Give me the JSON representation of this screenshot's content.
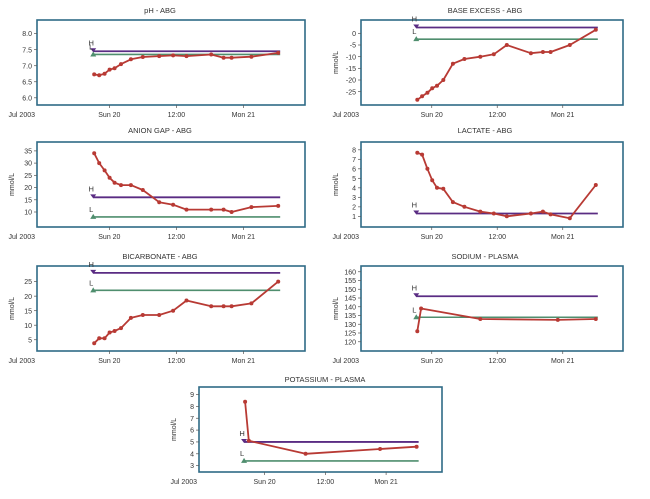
{
  "colors": {
    "frame": "#2f6a86",
    "series": "#b83a34",
    "high": "#5a2c83",
    "low": "#4f8e6e",
    "text": "#333333"
  },
  "x_ticks": [
    "Jul 2003",
    "Sun 20",
    "12:00",
    "Mon 21"
  ],
  "x_range": [
    0,
    48
  ],
  "chart_data": [
    {
      "id": "ph",
      "type": "line",
      "title": "pH - ABG",
      "ylabel": "",
      "ylim": [
        5.9,
        8.3
      ],
      "yticks": [
        6.0,
        6.5,
        7.0,
        7.5,
        8.0
      ],
      "decimals": 1,
      "high": 7.45,
      "low": 7.35,
      "high_label": "H",
      "low_label": "L",
      "x": [
        6.5,
        7.5,
        8.6,
        9.6,
        10.6,
        11.9,
        13.9,
        16.3,
        19.6,
        22.4,
        25.1,
        30.1,
        32.6,
        34.2,
        38.2,
        43.6
      ],
      "y": [
        6.73,
        6.7,
        6.75,
        6.88,
        6.92,
        7.05,
        7.2,
        7.27,
        7.3,
        7.32,
        7.3,
        7.35,
        7.25,
        7.25,
        7.28,
        7.4
      ]
    },
    {
      "id": "be",
      "type": "line",
      "title": "BASE EXCESS - ABG",
      "ylabel": "mmol/L",
      "ylim": [
        -29,
        4
      ],
      "yticks": [
        -25,
        -20,
        -15,
        -10,
        -5,
        0
      ],
      "decimals": 0,
      "high": 2.5,
      "low": -2.5,
      "high_label": "H",
      "low_label": "L",
      "x": [
        6.5,
        7.5,
        8.6,
        9.6,
        10.6,
        11.9,
        13.9,
        16.3,
        19.6,
        22.4,
        25.1,
        30.1,
        32.6,
        34.2,
        38.2,
        43.6
      ],
      "y": [
        -28.5,
        -27,
        -25.5,
        -23.5,
        -22.5,
        -20,
        -13,
        -11,
        -10,
        -9,
        -5,
        -8.5,
        -8,
        -8,
        -5,
        1.5
      ]
    },
    {
      "id": "ag",
      "type": "line",
      "title": "ANION GAP - ABG",
      "ylabel": "mmol/L",
      "ylim": [
        5.5,
        37
      ],
      "yticks": [
        10,
        15,
        20,
        25,
        30,
        35
      ],
      "decimals": 0,
      "high": 16,
      "low": 8,
      "high_label": "H",
      "low_label": "L",
      "x": [
        6.5,
        7.5,
        8.6,
        9.6,
        10.6,
        11.9,
        13.9,
        16.3,
        19.6,
        22.4,
        25.1,
        30.1,
        32.6,
        34.2,
        38.2,
        43.6
      ],
      "y": [
        34,
        30,
        27,
        24,
        22,
        21,
        21,
        19,
        14,
        13,
        11,
        11,
        11,
        10,
        12,
        12.5
      ]
    },
    {
      "id": "lac",
      "type": "line",
      "title": "LACTATE - ABG",
      "ylabel": "mmol/L",
      "ylim": [
        0.3,
        8.4
      ],
      "yticks": [
        1,
        2,
        3,
        4,
        5,
        6,
        7,
        8
      ],
      "decimals": 0,
      "high": 1.3,
      "low": null,
      "high_label": "H",
      "low_label": "",
      "x": [
        6.5,
        7.5,
        8.6,
        9.6,
        10.6,
        11.9,
        13.9,
        16.3,
        19.6,
        22.4,
        25.1,
        30.1,
        32.6,
        34.2,
        38.2,
        43.6
      ],
      "y": [
        7.7,
        7.5,
        6.0,
        4.8,
        4.0,
        3.9,
        2.5,
        2.0,
        1.5,
        1.3,
        1.0,
        1.3,
        1.5,
        1.2,
        0.8,
        4.3
      ]
    },
    {
      "id": "bic",
      "type": "line",
      "title": "BICARBONATE - ABG",
      "ylabel": "mmol/L",
      "ylim": [
        2.5,
        29
      ],
      "yticks": [
        5,
        10,
        15,
        20,
        25
      ],
      "decimals": 0,
      "high": 28,
      "low": 22,
      "high_label": "H",
      "low_label": "L",
      "x": [
        6.5,
        7.5,
        8.6,
        9.6,
        10.6,
        11.9,
        13.9,
        16.3,
        19.6,
        22.4,
        25.1,
        30.1,
        32.6,
        34.2,
        38.2,
        43.6
      ],
      "y": [
        3.8,
        5.5,
        5.5,
        7.5,
        8,
        9,
        12.5,
        13.5,
        13.5,
        15,
        18.5,
        16.5,
        16.5,
        16.5,
        17.5,
        25
      ]
    },
    {
      "id": "na",
      "type": "line",
      "title": "SODIUM - PLASMA",
      "ylabel": "mmol/L",
      "ylim": [
        117,
        161
      ],
      "yticks": [
        120,
        125,
        130,
        135,
        140,
        145,
        150,
        155,
        160
      ],
      "decimals": 0,
      "high": 146,
      "low": 134,
      "high_label": "H",
      "low_label": "L",
      "x": [
        6.5,
        7.3,
        19.6,
        35.7,
        43.6
      ],
      "y": [
        126,
        139,
        133,
        132.5,
        133
      ]
    },
    {
      "id": "k",
      "type": "line",
      "title": "POTASSIUM - PLASMA",
      "ylabel": "mmol/L",
      "ylim": [
        2.8,
        9.3
      ],
      "yticks": [
        3,
        4,
        5,
        6,
        7,
        8,
        9
      ],
      "decimals": 0,
      "high": 5.0,
      "low": 3.4,
      "high_label": "H",
      "low_label": "L",
      "x": [
        6.5,
        7.3,
        19.6,
        35.7,
        43.6
      ],
      "y": [
        8.4,
        5.1,
        4.0,
        4.4,
        4.6
      ]
    }
  ]
}
